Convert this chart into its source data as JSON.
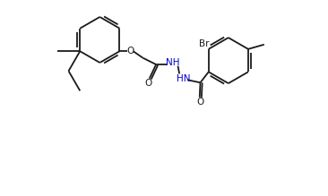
{
  "bg": "#ffffff",
  "lc": "#1a1a1a",
  "nhc": "#0000cd",
  "lw": 1.3,
  "fs": 7.5,
  "figsize": [
    3.66,
    2.19
  ],
  "dpi": 100,
  "xlim": [
    0.0,
    18.3
  ],
  "ylim": [
    -2.8,
    10.5
  ]
}
